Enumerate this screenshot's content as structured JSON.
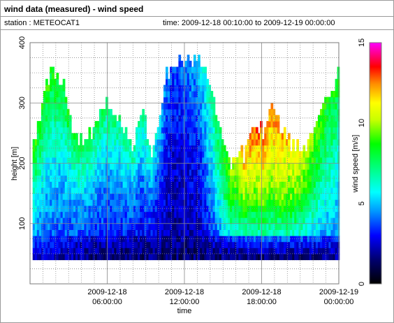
{
  "header": {
    "title": "wind data (measured) - wind speed",
    "station": "station : METEOCAT1",
    "time_range": "time: 2009-12-18 00:10:00 to 2009-12-19 00:00:00"
  },
  "chart_data": {
    "type": "heatmap",
    "xlabel": "time",
    "ylabel": "height [m]",
    "colorbar_label": "wind speed [m/s]",
    "x_ticks": [
      {
        "hours": 6,
        "line1": "2009-12-18",
        "line2": "06:00:00"
      },
      {
        "hours": 12,
        "line1": "2009-12-18",
        "line2": "12:00:00"
      },
      {
        "hours": 18,
        "line1": "2009-12-18",
        "line2": "18:00:00"
      },
      {
        "hours": 24,
        "line1": "2009-12-19",
        "line2": "00:00:00"
      }
    ],
    "x_range_hours": [
      0,
      24
    ],
    "y_ticks": [
      100,
      200,
      300,
      400
    ],
    "y_range_m": [
      0,
      400
    ],
    "colorbar_ticks": [
      0,
      5,
      10,
      15
    ],
    "colorbar_range": [
      0,
      15
    ],
    "grid": true,
    "height_bins_m": [
      40,
      400
    ],
    "time_step_hours": 0.1667,
    "top_height_profile": [
      {
        "hours": 0.3,
        "top": 230
      },
      {
        "hours": 1.0,
        "top": 300
      },
      {
        "hours": 1.7,
        "top": 360
      },
      {
        "hours": 2.5,
        "top": 330
      },
      {
        "hours": 3.3,
        "top": 240
      },
      {
        "hours": 4.0,
        "top": 230
      },
      {
        "hours": 4.7,
        "top": 250
      },
      {
        "hours": 5.5,
        "top": 290
      },
      {
        "hours": 6.5,
        "top": 290
      },
      {
        "hours": 7.2,
        "top": 250
      },
      {
        "hours": 8.0,
        "top": 230
      },
      {
        "hours": 8.7,
        "top": 280
      },
      {
        "hours": 9.3,
        "top": 210
      },
      {
        "hours": 9.9,
        "top": 250
      },
      {
        "hours": 10.5,
        "top": 340
      },
      {
        "hours": 11.5,
        "top": 365
      },
      {
        "hours": 13.0,
        "top": 365
      },
      {
        "hours": 13.8,
        "top": 340
      },
      {
        "hours": 14.3,
        "top": 290
      },
      {
        "hours": 14.8,
        "top": 230
      },
      {
        "hours": 15.5,
        "top": 200
      },
      {
        "hours": 16.5,
        "top": 210
      },
      {
        "hours": 17.3,
        "top": 260
      },
      {
        "hours": 18.0,
        "top": 250
      },
      {
        "hours": 18.8,
        "top": 300
      },
      {
        "hours": 19.5,
        "top": 250
      },
      {
        "hours": 20.3,
        "top": 230
      },
      {
        "hours": 21.0,
        "top": 210
      },
      {
        "hours": 21.8,
        "top": 240
      },
      {
        "hours": 22.5,
        "top": 280
      },
      {
        "hours": 23.3,
        "top": 310
      },
      {
        "hours": 23.9,
        "top": 360
      }
    ],
    "speed_profile_note": "low winds (0-3 m/s) below ~80 m, increasing with height; strongest (11-14 m/s) between 17:00 and 21:00 around 180-260 m",
    "speed_keypoints": [
      {
        "hours": 0,
        "low": 2.5,
        "mid": 6.0,
        "high": 9.0
      },
      {
        "hours": 3,
        "low": 2.0,
        "mid": 5.0,
        "high": 8.5
      },
      {
        "hours": 6,
        "low": 1.5,
        "mid": 4.5,
        "high": 7.5
      },
      {
        "hours": 9,
        "low": 1.5,
        "mid": 4.0,
        "high": 7.0
      },
      {
        "hours": 11,
        "low": 1.5,
        "mid": 2.5,
        "high": 3.5
      },
      {
        "hours": 13,
        "low": 1.5,
        "mid": 3.0,
        "high": 5.0
      },
      {
        "hours": 15,
        "low": 1.5,
        "mid": 7.0,
        "high": 8.5
      },
      {
        "hours": 17,
        "low": 1.5,
        "mid": 9.5,
        "high": 13.0
      },
      {
        "hours": 19,
        "low": 1.5,
        "mid": 10.0,
        "high": 12.5
      },
      {
        "hours": 21,
        "low": 1.5,
        "mid": 8.5,
        "high": 11.0
      },
      {
        "hours": 23,
        "low": 2.0,
        "mid": 6.5,
        "high": 8.5
      },
      {
        "hours": 24,
        "low": 2.0,
        "mid": 6.0,
        "high": 8.5
      }
    ]
  }
}
